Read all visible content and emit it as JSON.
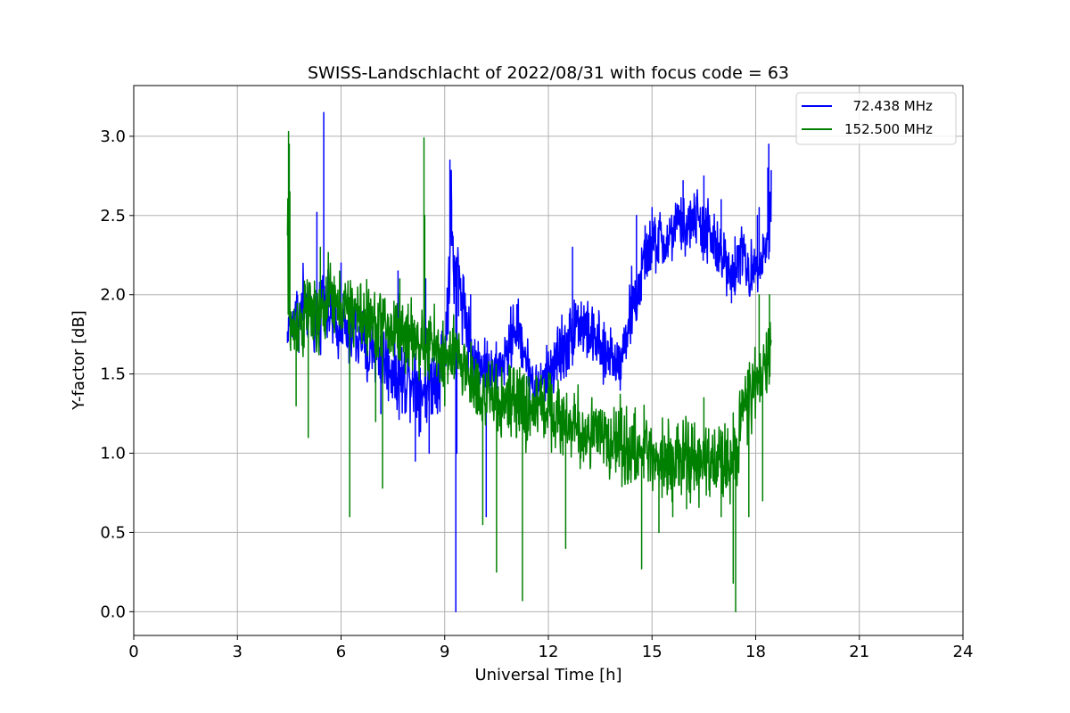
{
  "chart_data": {
    "type": "line",
    "title": "SWISS-Landschlacht of 2022/08/31 with focus code = 63",
    "xlabel": "Universal Time [h]",
    "ylabel": "Y-factor [dB]",
    "xlim": [
      0,
      24
    ],
    "ylim": [
      -0.15,
      3.32
    ],
    "xticks": [
      0,
      3,
      6,
      9,
      12,
      15,
      18,
      21,
      24
    ],
    "xtick_labels": [
      "0",
      "3",
      "6",
      "9",
      "12",
      "15",
      "18",
      "21",
      "24"
    ],
    "yticks": [
      0.0,
      0.5,
      1.0,
      1.5,
      2.0,
      2.5,
      3.0
    ],
    "ytick_labels": [
      "0.0",
      "0.5",
      "1.0",
      "1.5",
      "2.0",
      "2.5",
      "3.0"
    ],
    "grid": true,
    "legend_position": "top-right",
    "series": [
      {
        "name": "  72.438 MHz",
        "color": "#0000ff",
        "x": [
          4.45,
          4.5,
          4.6,
          4.7,
          4.8,
          4.9,
          5.0,
          5.1,
          5.2,
          5.3,
          5.4,
          5.5,
          5.55,
          5.6,
          5.7,
          5.8,
          5.9,
          6.0,
          6.1,
          6.2,
          6.3,
          6.4,
          6.5,
          6.6,
          6.7,
          6.8,
          6.9,
          7.0,
          7.2,
          7.4,
          7.6,
          7.8,
          8.0,
          8.2,
          8.4,
          8.6,
          8.8,
          9.0,
          9.1,
          9.15,
          9.2,
          9.25,
          9.3,
          9.35,
          9.4,
          9.5,
          9.6,
          9.7,
          9.8,
          9.9,
          10.0,
          10.2,
          10.4,
          10.6,
          10.8,
          11.0,
          11.2,
          11.4,
          11.6,
          11.8,
          12.0,
          12.2,
          12.4,
          12.6,
          12.8,
          13.0,
          13.2,
          13.4,
          13.6,
          13.8,
          14.0,
          14.2,
          14.4,
          14.6,
          14.8,
          15.0,
          15.2,
          15.4,
          15.6,
          15.8,
          16.0,
          16.2,
          16.4,
          16.6,
          16.8,
          17.0,
          17.2,
          17.4,
          17.6,
          17.8,
          18.0,
          18.2,
          18.3,
          18.4,
          18.45
        ],
        "y": [
          1.75,
          1.85,
          1.8,
          1.95,
          1.8,
          2.0,
          1.85,
          1.9,
          1.8,
          1.85,
          1.9,
          2.05,
          1.95,
          1.9,
          1.85,
          1.8,
          1.75,
          1.85,
          1.8,
          1.7,
          1.75,
          1.8,
          1.7,
          1.75,
          1.65,
          1.6,
          1.7,
          1.65,
          1.6,
          1.55,
          1.5,
          1.45,
          1.5,
          1.45,
          1.4,
          1.45,
          1.5,
          1.65,
          2.0,
          2.3,
          2.5,
          2.2,
          2.05,
          2.2,
          2.1,
          2.0,
          1.9,
          1.7,
          1.6,
          1.55,
          1.6,
          1.55,
          1.5,
          1.55,
          1.6,
          1.8,
          1.75,
          1.55,
          1.4,
          1.45,
          1.5,
          1.6,
          1.65,
          1.7,
          1.85,
          1.8,
          1.75,
          1.7,
          1.6,
          1.65,
          1.55,
          1.7,
          1.9,
          2.0,
          2.25,
          2.3,
          2.35,
          2.3,
          2.4,
          2.45,
          2.4,
          2.5,
          2.45,
          2.4,
          2.3,
          2.25,
          2.2,
          2.15,
          2.3,
          2.1,
          2.2,
          2.25,
          2.3,
          2.4,
          2.7
        ],
        "noise": [
          0.08,
          0.1,
          0.15,
          0.12,
          0.15,
          0.2,
          0.12,
          0.15,
          0.18,
          0.15,
          0.2,
          0.12,
          0.18,
          0.2,
          0.15,
          0.18,
          0.15,
          0.15,
          0.18,
          0.2,
          0.18,
          0.2,
          0.2,
          0.18,
          0.2,
          0.2,
          0.2,
          0.18,
          0.2,
          0.2,
          0.2,
          0.22,
          0.2,
          0.22,
          0.2,
          0.18,
          0.2,
          0.25,
          0.25,
          0.3,
          0.3,
          0.2,
          0.2,
          0.2,
          0.2,
          0.2,
          0.2,
          0.2,
          0.15,
          0.15,
          0.15,
          0.15,
          0.12,
          0.15,
          0.15,
          0.18,
          0.15,
          0.15,
          0.15,
          0.12,
          0.15,
          0.18,
          0.2,
          0.18,
          0.18,
          0.18,
          0.15,
          0.18,
          0.15,
          0.15,
          0.15,
          0.15,
          0.2,
          0.18,
          0.15,
          0.15,
          0.18,
          0.15,
          0.15,
          0.15,
          0.15,
          0.15,
          0.18,
          0.2,
          0.18,
          0.15,
          0.15,
          0.18,
          0.15,
          0.15,
          0.12,
          0.15,
          0.15,
          0.2,
          0.15
        ],
        "spikes": [
          [
            4.45,
            1.7
          ],
          [
            5.5,
            3.15
          ],
          [
            5.55,
            2.0
          ],
          [
            5.3,
            2.52
          ],
          [
            6.0,
            2.2
          ],
          [
            7.15,
            1.25
          ],
          [
            7.65,
            2.15
          ],
          [
            8.15,
            0.95
          ],
          [
            8.45,
            2.1
          ],
          [
            8.55,
            1.0
          ],
          [
            9.15,
            2.85
          ],
          [
            9.2,
            2.6
          ],
          [
            9.32,
            0.0
          ],
          [
            9.35,
            1.0
          ],
          [
            9.75,
            2.0
          ],
          [
            10.2,
            0.6
          ],
          [
            12.7,
            2.3
          ],
          [
            14.55,
            2.5
          ],
          [
            15.0,
            2.55
          ],
          [
            15.9,
            2.72
          ],
          [
            16.0,
            2.5
          ],
          [
            16.5,
            2.75
          ],
          [
            17.0,
            2.6
          ],
          [
            17.3,
            1.95
          ],
          [
            17.4,
            2.0
          ],
          [
            18.05,
            2.5
          ],
          [
            18.1,
            2.55
          ],
          [
            18.35,
            2.8
          ],
          [
            18.38,
            2.95
          ],
          [
            18.45,
            2.75
          ]
        ]
      },
      {
        "name": "152.500 MHz",
        "color": "#008000",
        "x": [
          4.45,
          4.5,
          4.6,
          4.7,
          4.8,
          4.9,
          5.0,
          5.1,
          5.2,
          5.3,
          5.4,
          5.5,
          5.6,
          5.7,
          5.8,
          5.9,
          6.0,
          6.2,
          6.4,
          6.6,
          6.8,
          7.0,
          7.2,
          7.4,
          7.6,
          7.8,
          8.0,
          8.2,
          8.4,
          8.6,
          8.8,
          9.0,
          9.2,
          9.4,
          9.6,
          9.8,
          10.0,
          10.2,
          10.4,
          10.6,
          10.8,
          11.0,
          11.2,
          11.4,
          11.6,
          11.8,
          12.0,
          12.2,
          12.4,
          12.6,
          12.8,
          13.0,
          13.2,
          13.4,
          13.6,
          13.8,
          14.0,
          14.2,
          14.4,
          14.6,
          14.8,
          15.0,
          15.2,
          15.4,
          15.6,
          15.8,
          16.0,
          16.2,
          16.4,
          16.6,
          16.8,
          17.0,
          17.2,
          17.4,
          17.5,
          17.6,
          17.7,
          17.8,
          18.0,
          18.2,
          18.3,
          18.4,
          18.45
        ],
        "y": [
          2.3,
          1.9,
          1.75,
          1.8,
          1.85,
          1.8,
          1.9,
          1.95,
          1.85,
          1.8,
          1.85,
          1.9,
          1.95,
          2.0,
          1.95,
          1.9,
          1.95,
          1.9,
          1.9,
          1.85,
          1.85,
          1.8,
          1.85,
          1.75,
          1.8,
          1.75,
          1.75,
          1.7,
          1.65,
          1.7,
          1.65,
          1.6,
          1.6,
          1.6,
          1.55,
          1.45,
          1.4,
          1.35,
          1.35,
          1.3,
          1.35,
          1.3,
          1.3,
          1.25,
          1.3,
          1.3,
          1.3,
          1.25,
          1.2,
          1.2,
          1.15,
          1.1,
          1.15,
          1.1,
          1.1,
          1.05,
          1.1,
          1.05,
          1.0,
          1.0,
          1.05,
          1.0,
          0.95,
          1.0,
          0.95,
          0.95,
          1.0,
          0.9,
          0.95,
          0.95,
          0.9,
          1.0,
          0.95,
          1.0,
          1.1,
          1.25,
          1.3,
          1.35,
          1.4,
          1.5,
          1.55,
          1.6,
          1.7
        ],
        "noise": [
          0.5,
          0.2,
          0.2,
          0.2,
          0.2,
          0.2,
          0.2,
          0.18,
          0.2,
          0.2,
          0.2,
          0.2,
          0.2,
          0.2,
          0.18,
          0.18,
          0.18,
          0.18,
          0.18,
          0.2,
          0.18,
          0.18,
          0.18,
          0.2,
          0.2,
          0.2,
          0.2,
          0.18,
          0.18,
          0.2,
          0.18,
          0.2,
          0.2,
          0.18,
          0.2,
          0.2,
          0.2,
          0.2,
          0.18,
          0.2,
          0.18,
          0.2,
          0.2,
          0.2,
          0.18,
          0.2,
          0.2,
          0.18,
          0.2,
          0.2,
          0.2,
          0.2,
          0.2,
          0.2,
          0.2,
          0.2,
          0.2,
          0.2,
          0.2,
          0.2,
          0.2,
          0.2,
          0.2,
          0.2,
          0.2,
          0.2,
          0.2,
          0.2,
          0.2,
          0.2,
          0.2,
          0.2,
          0.2,
          0.2,
          0.2,
          0.2,
          0.2,
          0.2,
          0.18,
          0.2,
          0.2,
          0.2,
          0.15
        ],
        "spikes": [
          [
            4.48,
            3.03
          ],
          [
            4.5,
            2.95
          ],
          [
            4.52,
            2.65
          ],
          [
            4.7,
            1.3
          ],
          [
            5.05,
            1.1
          ],
          [
            5.4,
            2.3
          ],
          [
            6.25,
            0.6
          ],
          [
            7.0,
            1.2
          ],
          [
            7.2,
            0.78
          ],
          [
            7.7,
            2.1
          ],
          [
            8.4,
            2.99
          ],
          [
            8.42,
            2.5
          ],
          [
            9.0,
            1.3
          ],
          [
            10.1,
            0.55
          ],
          [
            10.5,
            0.25
          ],
          [
            11.25,
            0.07
          ],
          [
            11.3,
            1.5
          ],
          [
            12.5,
            0.4
          ],
          [
            14.7,
            0.27
          ],
          [
            15.2,
            0.5
          ],
          [
            15.6,
            0.6
          ],
          [
            16.0,
            0.65
          ],
          [
            16.5,
            1.35
          ],
          [
            17.0,
            0.6
          ],
          [
            17.35,
            0.18
          ],
          [
            17.42,
            0.0
          ],
          [
            17.6,
            1.4
          ],
          [
            17.8,
            0.6
          ],
          [
            18.1,
            2.0
          ],
          [
            18.2,
            0.7
          ],
          [
            18.4,
            2.0
          ]
        ]
      }
    ]
  }
}
